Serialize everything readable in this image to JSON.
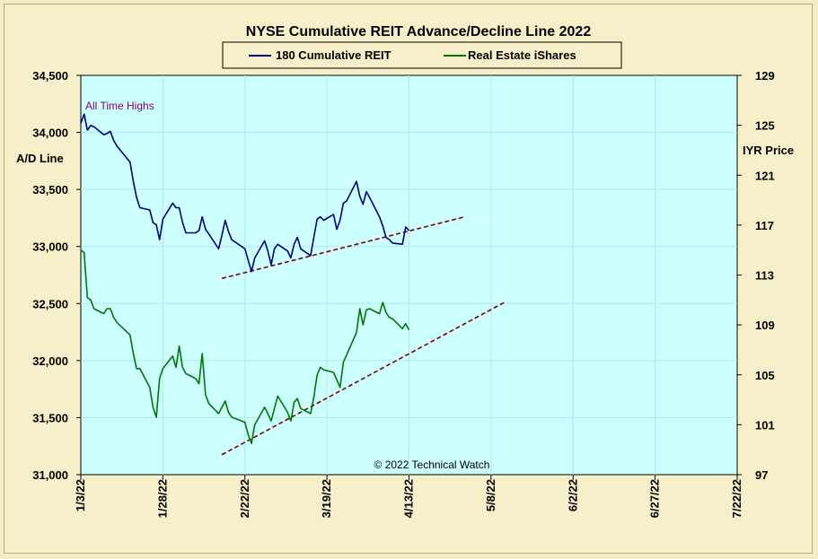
{
  "chart_data": {
    "type": "line",
    "title": "NYSE Cumulative  REIT Advance/Decline  Line 2022",
    "legend": {
      "placement": "top-center",
      "entries": [
        "180 Cumulative REIT",
        "Real Estate iShares"
      ]
    },
    "left_axis": {
      "label": "A/D Line",
      "range": [
        31000,
        34500
      ],
      "ticks": [
        "31,000",
        "31,500",
        "32,000",
        "32,500",
        "33,000",
        "33,500",
        "34,000",
        "34,500"
      ],
      "tick_values": [
        31000,
        31500,
        32000,
        32500,
        33000,
        33500,
        34000,
        34500
      ]
    },
    "right_axis": {
      "label": "IYR Price",
      "range": [
        97,
        129
      ],
      "ticks": [
        "97",
        "101",
        "105",
        "109",
        "113",
        "117",
        "121",
        "125",
        "129"
      ],
      "tick_values": [
        97,
        101,
        105,
        109,
        113,
        117,
        121,
        125,
        129
      ]
    },
    "x_axis": {
      "range": [
        "2022-01-03",
        "2022-07-22"
      ],
      "ticks": [
        "1/3/22",
        "1/28/22",
        "2/22/22",
        "3/19/22",
        "4/13/22",
        "5/8/22",
        "6/2/22",
        "6/27/22",
        "7/22/22"
      ],
      "tick_dates": [
        "2022-01-03",
        "2022-01-28",
        "2022-02-22",
        "2022-03-19",
        "2022-04-13",
        "2022-05-08",
        "2022-06-02",
        "2022-06-27",
        "2022-07-22"
      ]
    },
    "annotations": [
      "All Time Highs",
      "© 2022 Technical  Watch"
    ],
    "grid": true,
    "plot_background": "#ccffff",
    "series": [
      {
        "name": "180 Cumulative REIT",
        "axis": "left",
        "color": "#000080",
        "points": [
          [
            "2022-01-03",
            34080
          ],
          [
            "2022-01-04",
            34160
          ],
          [
            "2022-01-05",
            34020
          ],
          [
            "2022-01-06",
            34060
          ],
          [
            "2022-01-07",
            34050
          ],
          [
            "2022-01-10",
            33980
          ],
          [
            "2022-01-11",
            33990
          ],
          [
            "2022-01-12",
            34010
          ],
          [
            "2022-01-13",
            33930
          ],
          [
            "2022-01-14",
            33880
          ],
          [
            "2022-01-18",
            33740
          ],
          [
            "2022-01-19",
            33570
          ],
          [
            "2022-01-20",
            33430
          ],
          [
            "2022-01-21",
            33340
          ],
          [
            "2022-01-24",
            33320
          ],
          [
            "2022-01-25",
            33210
          ],
          [
            "2022-01-26",
            33190
          ],
          [
            "2022-01-27",
            33060
          ],
          [
            "2022-01-28",
            33240
          ],
          [
            "2022-01-31",
            33380
          ],
          [
            "2022-02-01",
            33340
          ],
          [
            "2022-02-02",
            33340
          ],
          [
            "2022-02-03",
            33210
          ],
          [
            "2022-02-04",
            33120
          ],
          [
            "2022-02-07",
            33120
          ],
          [
            "2022-02-08",
            33140
          ],
          [
            "2022-02-09",
            33260
          ],
          [
            "2022-02-10",
            33150
          ],
          [
            "2022-02-11",
            33110
          ],
          [
            "2022-02-14",
            32980
          ],
          [
            "2022-02-15",
            33100
          ],
          [
            "2022-02-16",
            33230
          ],
          [
            "2022-02-17",
            33130
          ],
          [
            "2022-02-18",
            33060
          ],
          [
            "2022-02-22",
            32980
          ],
          [
            "2022-02-23",
            32880
          ],
          [
            "2022-02-24",
            32780
          ],
          [
            "2022-02-25",
            32900
          ],
          [
            "2022-02-28",
            33050
          ],
          [
            "2022-03-01",
            32960
          ],
          [
            "2022-03-02",
            32840
          ],
          [
            "2022-03-03",
            32980
          ],
          [
            "2022-03-04",
            33020
          ],
          [
            "2022-03-07",
            32960
          ],
          [
            "2022-03-08",
            32900
          ],
          [
            "2022-03-09",
            33020
          ],
          [
            "2022-03-10",
            33080
          ],
          [
            "2022-03-11",
            32980
          ],
          [
            "2022-03-14",
            32920
          ],
          [
            "2022-03-15",
            33080
          ],
          [
            "2022-03-16",
            33240
          ],
          [
            "2022-03-17",
            33260
          ],
          [
            "2022-03-18",
            33230
          ],
          [
            "2022-03-21",
            33280
          ],
          [
            "2022-03-22",
            33150
          ],
          [
            "2022-03-23",
            33230
          ],
          [
            "2022-03-24",
            33380
          ],
          [
            "2022-03-25",
            33400
          ],
          [
            "2022-03-28",
            33570
          ],
          [
            "2022-03-29",
            33440
          ],
          [
            "2022-03-30",
            33370
          ],
          [
            "2022-03-31",
            33480
          ],
          [
            "2022-04-01",
            33430
          ],
          [
            "2022-04-04",
            33260
          ],
          [
            "2022-04-05",
            33180
          ],
          [
            "2022-04-06",
            33080
          ],
          [
            "2022-04-07",
            33060
          ],
          [
            "2022-04-08",
            33030
          ],
          [
            "2022-04-11",
            33020
          ],
          [
            "2022-04-12",
            33170
          ],
          [
            "2022-04-13",
            33140
          ]
        ]
      },
      {
        "name": "Real Estate iShares",
        "axis": "right",
        "color": "#007700",
        "points": [
          [
            "2022-01-03",
            115.0
          ],
          [
            "2022-01-04",
            114.8
          ],
          [
            "2022-01-05",
            111.2
          ],
          [
            "2022-01-06",
            111.0
          ],
          [
            "2022-01-07",
            110.3
          ],
          [
            "2022-01-10",
            109.9
          ],
          [
            "2022-01-11",
            110.3
          ],
          [
            "2022-01-12",
            110.3
          ],
          [
            "2022-01-13",
            109.6
          ],
          [
            "2022-01-14",
            109.2
          ],
          [
            "2022-01-18",
            108.2
          ],
          [
            "2022-01-19",
            106.7
          ],
          [
            "2022-01-20",
            105.5
          ],
          [
            "2022-01-21",
            105.5
          ],
          [
            "2022-01-24",
            104.0
          ],
          [
            "2022-01-25",
            102.4
          ],
          [
            "2022-01-26",
            101.6
          ],
          [
            "2022-01-27",
            104.7
          ],
          [
            "2022-01-28",
            105.5
          ],
          [
            "2022-01-31",
            106.5
          ],
          [
            "2022-02-01",
            105.6
          ],
          [
            "2022-02-02",
            107.3
          ],
          [
            "2022-02-03",
            105.6
          ],
          [
            "2022-02-04",
            105.1
          ],
          [
            "2022-02-07",
            104.7
          ],
          [
            "2022-02-08",
            104.3
          ],
          [
            "2022-02-09",
            106.7
          ],
          [
            "2022-02-10",
            103.4
          ],
          [
            "2022-02-11",
            102.7
          ],
          [
            "2022-02-14",
            101.9
          ],
          [
            "2022-02-15",
            102.4
          ],
          [
            "2022-02-16",
            102.9
          ],
          [
            "2022-02-17",
            102.0
          ],
          [
            "2022-02-18",
            101.6
          ],
          [
            "2022-02-22",
            101.2
          ],
          [
            "2022-02-23",
            100.2
          ],
          [
            "2022-02-24",
            99.5
          ],
          [
            "2022-02-25",
            101.0
          ],
          [
            "2022-02-28",
            102.4
          ],
          [
            "2022-03-01",
            101.9
          ],
          [
            "2022-03-02",
            101.3
          ],
          [
            "2022-03-03",
            102.3
          ],
          [
            "2022-03-04",
            103.3
          ],
          [
            "2022-03-07",
            102.0
          ],
          [
            "2022-03-08",
            101.3
          ],
          [
            "2022-03-09",
            102.8
          ],
          [
            "2022-03-10",
            103.1
          ],
          [
            "2022-03-11",
            102.3
          ],
          [
            "2022-03-14",
            101.9
          ],
          [
            "2022-03-15",
            103.2
          ],
          [
            "2022-03-16",
            105.0
          ],
          [
            "2022-03-17",
            105.6
          ],
          [
            "2022-03-18",
            105.4
          ],
          [
            "2022-03-21",
            105.2
          ],
          [
            "2022-03-22",
            104.6
          ],
          [
            "2022-03-23",
            104.0
          ],
          [
            "2022-03-24",
            106.0
          ],
          [
            "2022-03-25",
            106.6
          ],
          [
            "2022-03-28",
            108.4
          ],
          [
            "2022-03-29",
            110.3
          ],
          [
            "2022-03-30",
            109.0
          ],
          [
            "2022-03-31",
            110.2
          ],
          [
            "2022-04-01",
            110.3
          ],
          [
            "2022-04-04",
            109.9
          ],
          [
            "2022-04-05",
            110.8
          ],
          [
            "2022-04-06",
            110.0
          ],
          [
            "2022-04-07",
            109.6
          ],
          [
            "2022-04-08",
            109.5
          ],
          [
            "2022-04-11",
            108.7
          ],
          [
            "2022-04-12",
            109.1
          ],
          [
            "2022-04-13",
            108.6
          ]
        ]
      }
    ],
    "trendlines": [
      {
        "axis": "left",
        "color": "#800000",
        "style": "dashed",
        "from": [
          "2022-02-15",
          32720
        ],
        "to": [
          "2022-04-30",
          33260
        ]
      },
      {
        "axis": "right",
        "color": "#800000",
        "style": "dashed",
        "from": [
          "2022-02-15",
          98.6
        ],
        "to": [
          "2022-05-12",
          110.8
        ]
      }
    ]
  }
}
